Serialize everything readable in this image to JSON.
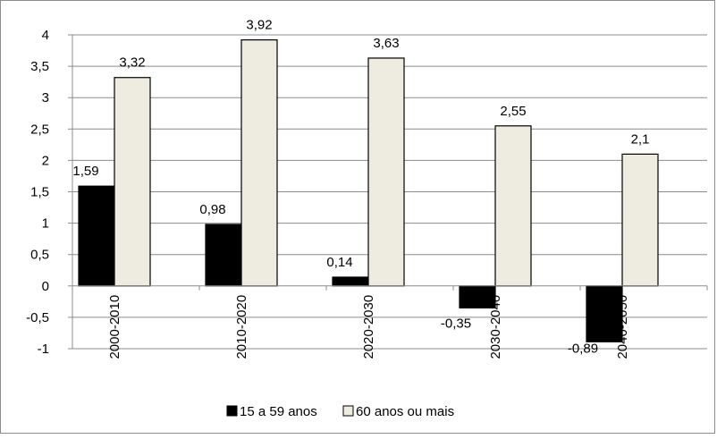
{
  "chart_data": {
    "type": "bar",
    "title": "",
    "xlabel": "",
    "ylabel": "",
    "categories": [
      "2000-2010",
      "2010-2020",
      "2020-2030",
      "2030-2040",
      "2040-2050"
    ],
    "series": [
      {
        "name": "15 a 59 anos",
        "values": [
          1.59,
          0.98,
          0.14,
          -0.35,
          -0.89
        ],
        "labels": [
          "1,59",
          "0,98",
          "0,14",
          "-0,35",
          "-0,89"
        ],
        "color": "#000000"
      },
      {
        "name": "60 anos ou mais",
        "values": [
          3.32,
          3.92,
          3.63,
          2.55,
          2.1
        ],
        "labels": [
          "3,32",
          "3,92",
          "3,63",
          "2,55",
          "2,1"
        ],
        "color": "#eeece1"
      }
    ],
    "ylim": [
      -1,
      4
    ],
    "yticks": [
      4,
      3.5,
      3,
      2.5,
      2,
      1.5,
      1,
      0.5,
      0,
      -0.5,
      -1
    ],
    "ytick_labels": [
      "4",
      "3,5",
      "3",
      "2,5",
      "2",
      "1,5",
      "1",
      "0,5",
      "0",
      "-0,5",
      "-1"
    ],
    "grid": true,
    "legend_position": "bottom"
  }
}
